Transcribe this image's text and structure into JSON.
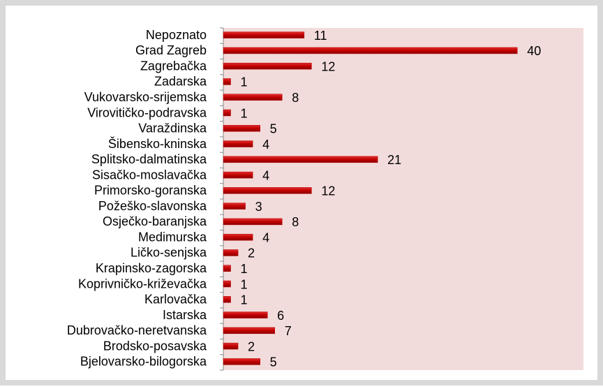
{
  "chart_data": {
    "type": "barh",
    "categories": [
      "Nepoznato",
      "Grad Zagreb",
      "Zagrebačka",
      "Zadarska",
      "Vukovarsko-srijemska",
      "Virovitičko-podravska",
      "Varaždinska",
      "Šibensko-kninska",
      "Splitsko-dalmatinska",
      "Sisačko-moslavačka",
      "Primorsko-goranska",
      "Požeško-slavonska",
      "Osječko-baranjska",
      "Medimurska",
      "Ličko-senjska",
      "Krapinsko-zagorska",
      "Koprivničko-križevačka",
      "Karlovačka",
      "Istarska",
      "Dubrovačko-neretvanska",
      "Brodsko-posavska",
      "Bjelovarsko-bilogorska"
    ],
    "values": [
      11,
      40,
      12,
      1,
      8,
      1,
      5,
      4,
      21,
      4,
      12,
      3,
      8,
      4,
      2,
      1,
      1,
      1,
      6,
      7,
      2,
      5
    ],
    "color": "#c00000",
    "plot_background": "#f2dcdb",
    "xlim": [
      0,
      49
    ]
  }
}
